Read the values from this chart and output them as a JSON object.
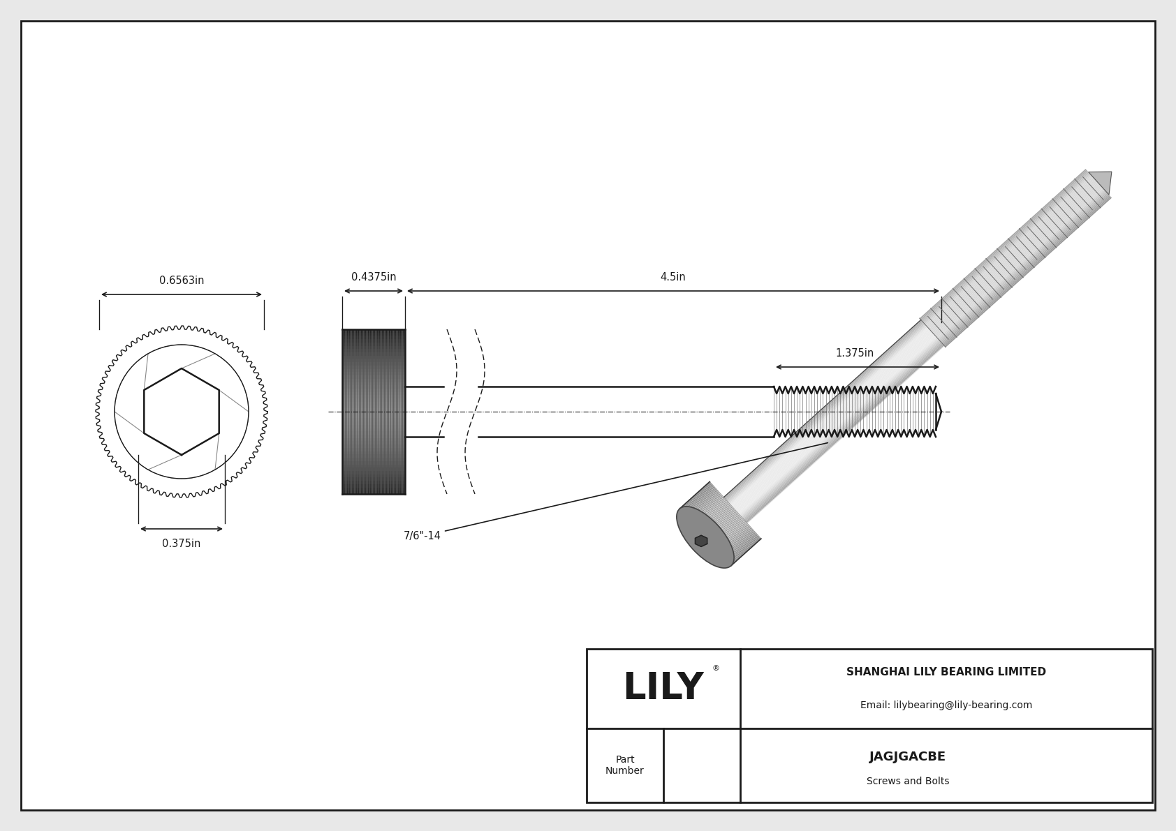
{
  "bg_color": "#e8e8e8",
  "drawing_bg": "#ffffff",
  "line_color": "#1a1a1a",
  "title": "JAGJGACBE",
  "subtitle": "Screws and Bolts",
  "company": "SHANGHAI LILY BEARING LIMITED",
  "email": "Email: lilybearing@lily-bearing.com",
  "part_label": "Part\nNumber",
  "logo_text": "LILY",
  "logo_reg": "®",
  "dim_head_diameter": "0.6563in",
  "dim_head_length": "0.4375in",
  "dim_total_length": "4.5in",
  "dim_thread_length": "1.375in",
  "dim_socket": "0.375in",
  "dim_thread_spec": "7/6\"-14",
  "font_size_dims": 10.5,
  "font_size_anno": 10.5,
  "font_size_logo": 38
}
